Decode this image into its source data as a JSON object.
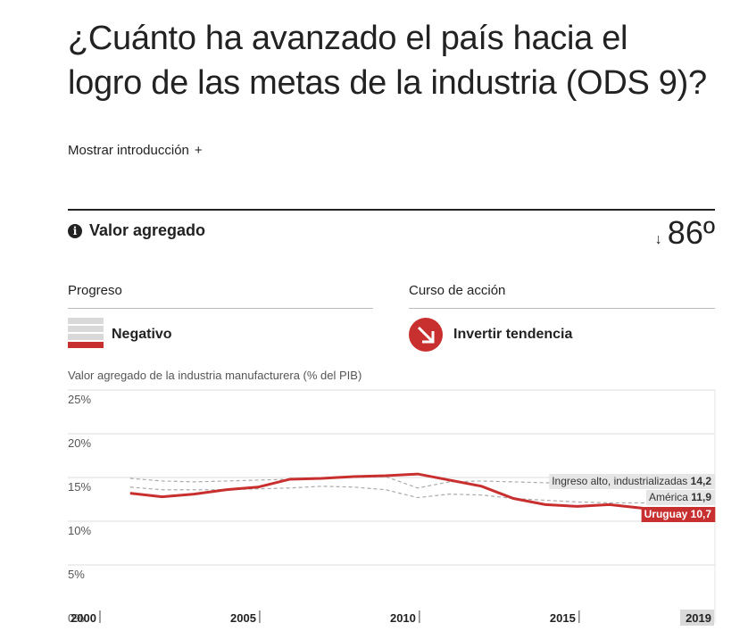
{
  "page": {
    "title": "¿Cuánto ha avanzado el país hacia el logro de las metas de la industria (ODS 9)?",
    "intro_label": "Mostrar introducción",
    "intro_icon": "+"
  },
  "indicator": {
    "info_icon": "i",
    "name": "Valor agregado",
    "rank_arrow": "↓",
    "rank": "86º"
  },
  "progress": {
    "heading": "Progreso",
    "value": "Negativo",
    "icon": "progress-bars-icon"
  },
  "action": {
    "heading": "Curso de acción",
    "value": "Invertir tendencia",
    "icon": "arrow-down-right-circle-icon",
    "color": "#c8302f"
  },
  "chart_data": {
    "type": "line",
    "title": "Valor agregado de la industria manufacturera (% del PIB)",
    "xlim": [
      2000,
      2019
    ],
    "ylim": [
      0,
      25
    ],
    "y_ticks": [
      {
        "value": 25,
        "label": "25%"
      },
      {
        "value": 20,
        "label": "20%"
      },
      {
        "value": 15,
        "label": "15%"
      },
      {
        "value": 10,
        "label": "10%"
      },
      {
        "value": 5,
        "label": "5%"
      },
      {
        "value": 0,
        "label": "0%"
      }
    ],
    "x_ticks": [
      {
        "value": 2000,
        "label": "2000"
      },
      {
        "value": 2005,
        "label": "2005"
      },
      {
        "value": 2010,
        "label": "2010"
      },
      {
        "value": 2015,
        "label": "2015"
      },
      {
        "value": 2019,
        "label": "2019",
        "highlight": true
      }
    ],
    "grid": true,
    "series": [
      {
        "name": "Ingreso alto, industrializadas",
        "end_label": "14,2",
        "style": "dashed",
        "color": "#aaaaaa",
        "label_color": "#333333",
        "x": [
          2001,
          2002,
          2003,
          2004,
          2005,
          2006,
          2007,
          2008,
          2009,
          2010,
          2011,
          2012,
          2013,
          2014,
          2015,
          2016,
          2017,
          2018,
          2019
        ],
        "y": [
          14.9,
          14.6,
          14.5,
          14.6,
          14.7,
          14.8,
          14.9,
          15.0,
          15.1,
          13.8,
          14.5,
          14.6,
          14.5,
          14.4,
          14.3,
          14.3,
          14.3,
          14.2,
          14.2
        ]
      },
      {
        "name": "América",
        "end_label": "11,9",
        "style": "dashed",
        "color": "#aaaaaa",
        "label_color": "#333333",
        "x": [
          2001,
          2002,
          2003,
          2004,
          2005,
          2006,
          2007,
          2008,
          2009,
          2010,
          2011,
          2012,
          2013,
          2014,
          2015,
          2016,
          2017,
          2018,
          2019
        ],
        "y": [
          13.9,
          13.6,
          13.6,
          13.6,
          13.7,
          13.8,
          14.0,
          13.9,
          13.6,
          12.7,
          13.1,
          13.0,
          12.6,
          12.4,
          12.2,
          12.1,
          12.1,
          12.0,
          11.9
        ]
      },
      {
        "name": "Uruguay",
        "end_label": "10,7",
        "style": "solid",
        "color": "#c8302f",
        "label_color": "#ffffff",
        "x": [
          2001,
          2002,
          2003,
          2004,
          2005,
          2006,
          2007,
          2008,
          2009,
          2010,
          2011,
          2012,
          2013,
          2014,
          2015,
          2016,
          2017,
          2018,
          2019
        ],
        "y": [
          13.2,
          12.8,
          13.1,
          13.6,
          13.9,
          14.8,
          14.9,
          15.1,
          15.2,
          15.4,
          14.7,
          14.0,
          12.6,
          11.9,
          11.7,
          11.9,
          11.5,
          11.0,
          10.7
        ]
      }
    ]
  }
}
